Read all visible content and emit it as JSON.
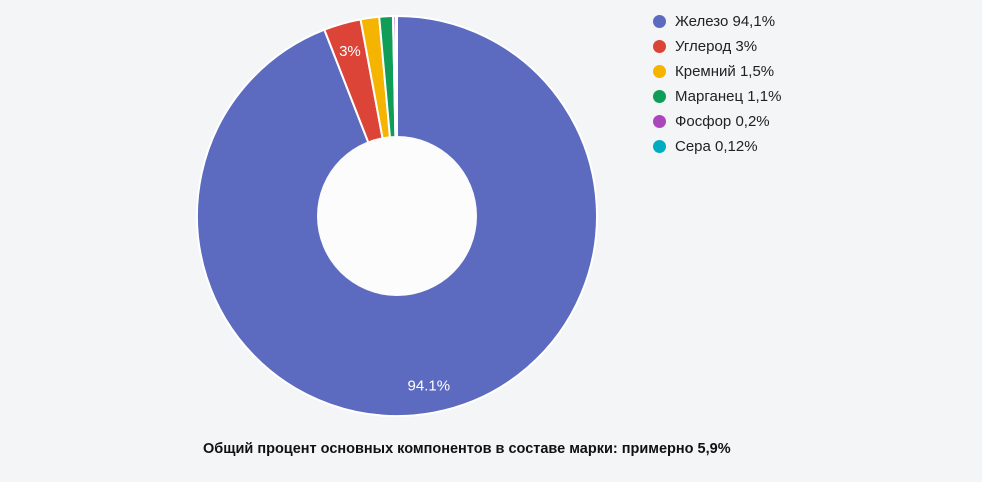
{
  "page": {
    "background_color": "#f4f5f6"
  },
  "caption": "Общий процент основных компонентов в составе марки: примерно 5,9%",
  "chart_data": {
    "type": "pie",
    "subtype": "donut",
    "hole_ratio": 0.4,
    "outer_radius": 200,
    "start_angle_deg": 0,
    "direction": "clockwise",
    "legend_position": "right",
    "slice_stroke_color": "#ffffff",
    "hole_color": "#fcfcfd",
    "slice_label_color": "#ffffff",
    "slice_label_radius_ratio": 0.86,
    "segments": [
      {
        "name": "Железо",
        "value": 94.1,
        "color": "#5c6bc0",
        "legend_label": "Железо 94,1%",
        "slice_label": "94.1%"
      },
      {
        "name": "Углерод",
        "value": 3,
        "color": "#db4437",
        "legend_label": "Углерод 3%",
        "slice_label": "3%"
      },
      {
        "name": "Кремний",
        "value": 1.5,
        "color": "#f4b400",
        "legend_label": "Кремний 1,5%",
        "slice_label": ""
      },
      {
        "name": "Марганец",
        "value": 1.1,
        "color": "#0f9d58",
        "legend_label": "Марганец 1,1%",
        "slice_label": ""
      },
      {
        "name": "Фосфор",
        "value": 0.2,
        "color": "#ab47bc",
        "legend_label": "Фосфор 0,2%",
        "slice_label": ""
      },
      {
        "name": "Сера",
        "value": 0.12,
        "color": "#00acc1",
        "legend_label": "Сера 0,12%",
        "slice_label": ""
      }
    ]
  }
}
